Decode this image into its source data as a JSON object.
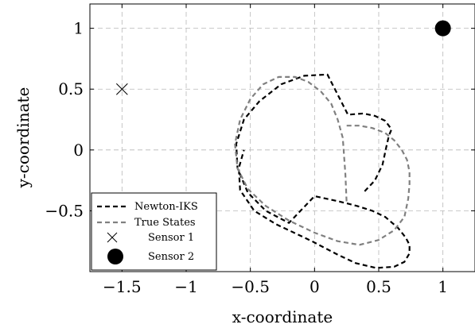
{
  "chart_data": {
    "type": "line",
    "title": "",
    "xlabel": "x-coordinate",
    "ylabel": "y-coordinate",
    "xlim": [
      -1.75,
      1.25
    ],
    "ylim": [
      -1.0,
      1.2
    ],
    "xticks": [
      -1.5,
      -1,
      -0.5,
      0,
      0.5,
      1
    ],
    "xtick_labels": [
      "−1.5",
      "−1",
      "−0.5",
      "0",
      "0.5",
      "1"
    ],
    "yticks": [
      -0.5,
      0,
      0.5,
      1
    ],
    "ytick_labels": [
      "−0.5",
      "0",
      "0.5",
      "1"
    ],
    "grid": true,
    "legend_position": "bottom-left",
    "series": [
      {
        "name": "Newton-IKS",
        "kind": "line",
        "color": "#000000",
        "dash": "dashed",
        "x": [
          0.39,
          0.47,
          0.53,
          0.56,
          0.58,
          0.6,
          0.55,
          0.47,
          0.38,
          0.26,
          0.1,
          -0.08,
          -0.26,
          -0.43,
          -0.55,
          -0.61,
          -0.6,
          -0.52,
          -0.38,
          -0.2,
          0.0,
          0.18,
          0.33,
          0.45,
          0.55,
          0.65,
          0.71,
          0.74,
          0.74,
          0.7,
          0.62,
          0.48,
          0.32,
          0.18,
          0.07,
          -0.02,
          -0.14,
          -0.3,
          -0.47,
          -0.58,
          -0.59,
          -0.55
        ],
        "y": [
          -0.34,
          -0.25,
          -0.12,
          0.03,
          0.12,
          0.17,
          0.24,
          0.28,
          0.3,
          0.29,
          0.62,
          0.61,
          0.54,
          0.4,
          0.25,
          0.05,
          -0.15,
          -0.35,
          -0.5,
          -0.6,
          -0.38,
          -0.42,
          -0.46,
          -0.5,
          -0.55,
          -0.64,
          -0.72,
          -0.78,
          -0.85,
          -0.92,
          -0.96,
          -0.97,
          -0.93,
          -0.86,
          -0.8,
          -0.75,
          -0.69,
          -0.61,
          -0.5,
          -0.33,
          -0.15,
          0.0
        ]
      },
      {
        "name": "True States",
        "kind": "line",
        "color": "#808080",
        "dash": "dashed",
        "x": [
          0.25,
          0.35,
          0.45,
          0.55,
          0.62,
          0.68,
          0.72,
          0.74,
          0.74,
          0.73,
          0.7,
          0.62,
          0.5,
          0.35,
          0.18,
          0.0,
          -0.2,
          -0.38,
          -0.52,
          -0.6,
          -0.62,
          -0.58,
          -0.5,
          -0.4,
          -0.28,
          -0.15,
          -0.05,
          0.05,
          0.13,
          0.18,
          0.22,
          0.24,
          0.25
        ],
        "y": [
          0.2,
          0.2,
          0.18,
          0.14,
          0.08,
          0.0,
          -0.08,
          -0.18,
          -0.28,
          -0.4,
          -0.55,
          -0.66,
          -0.74,
          -0.78,
          -0.75,
          -0.68,
          -0.58,
          -0.46,
          -0.32,
          -0.15,
          0.05,
          0.25,
          0.42,
          0.54,
          0.6,
          0.6,
          0.56,
          0.48,
          0.38,
          0.25,
          0.1,
          -0.2,
          -0.44
        ]
      },
      {
        "name": "Sensor 1",
        "kind": "marker",
        "marker": "x",
        "color": "#000000",
        "x": [
          -1.5
        ],
        "y": [
          0.5
        ]
      },
      {
        "name": "Sensor 2",
        "kind": "marker",
        "marker": "circle",
        "color": "#000000",
        "x": [
          1.0
        ],
        "y": [
          1.0
        ]
      }
    ]
  }
}
